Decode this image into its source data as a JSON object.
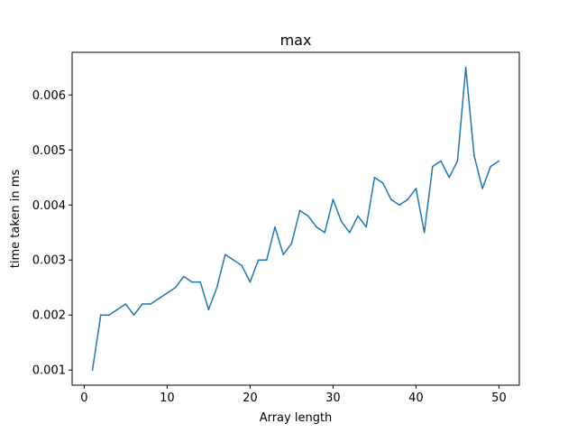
{
  "chart_data": {
    "type": "line",
    "title": "max",
    "xlabel": "Array length",
    "ylabel": "time taken in ms",
    "xlim": [
      -1.45,
      52.45
    ],
    "ylim": [
      0.000725,
      0.006775
    ],
    "xticks": [
      0,
      10,
      20,
      30,
      40,
      50
    ],
    "yticks": [
      0.001,
      0.002,
      0.003,
      0.004,
      0.005,
      0.006
    ],
    "ytick_labels": [
      "0.001",
      "0.002",
      "0.003",
      "0.004",
      "0.005",
      "0.006"
    ],
    "grid": false,
    "series": [
      {
        "color": "#1f77b4",
        "x": [
          1,
          2,
          3,
          4,
          5,
          6,
          7,
          8,
          9,
          10,
          11,
          12,
          13,
          14,
          15,
          16,
          17,
          18,
          19,
          20,
          21,
          22,
          23,
          24,
          25,
          26,
          27,
          28,
          29,
          30,
          31,
          32,
          33,
          34,
          35,
          36,
          37,
          38,
          39,
          40,
          41,
          42,
          43,
          44,
          45,
          46,
          47,
          48,
          49,
          50
        ],
        "y": [
          0.001,
          0.002,
          0.002,
          0.0021,
          0.0022,
          0.002,
          0.0022,
          0.0022,
          0.0023,
          0.0024,
          0.0025,
          0.0027,
          0.0026,
          0.0026,
          0.0021,
          0.0025,
          0.0031,
          0.003,
          0.0029,
          0.0026,
          0.003,
          0.003,
          0.0036,
          0.0031,
          0.0033,
          0.0039,
          0.0038,
          0.0036,
          0.0035,
          0.0041,
          0.0037,
          0.0035,
          0.0038,
          0.0036,
          0.0045,
          0.0044,
          0.0041,
          0.004,
          0.0041,
          0.0043,
          0.0035,
          0.0047,
          0.0048,
          0.0045,
          0.0048,
          0.0065,
          0.0049,
          0.0043,
          0.0047,
          0.0048
        ]
      }
    ]
  }
}
